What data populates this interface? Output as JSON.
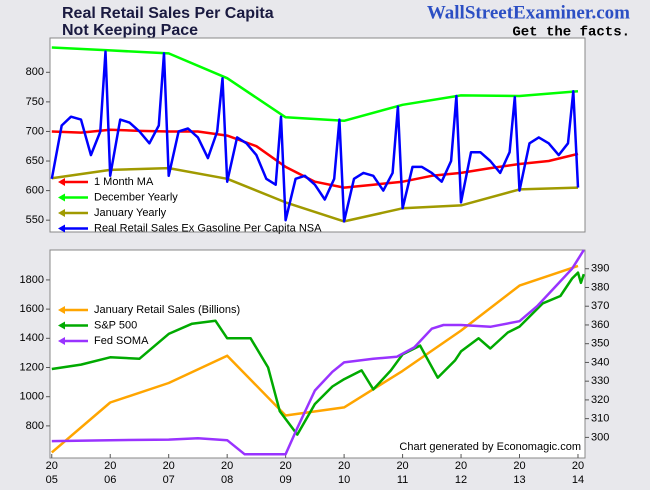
{
  "header": {
    "title": [
      "Real Retail Sales Per Capita",
      "Not Keeping Pace"
    ],
    "site": "WallStreetExaminer.com",
    "tagline": "Get the facts."
  },
  "chart_data": [
    {
      "type": "line",
      "xlim": [
        2004.97,
        2014.12
      ],
      "ylim": [
        530,
        858
      ],
      "yticks": [
        550,
        600,
        650,
        700,
        750,
        800
      ],
      "legend": "lower left",
      "series": [
        {
          "name": "1 Month MA",
          "color": "#ff0000",
          "x": [
            2005,
            2005.5,
            2006,
            2006.5,
            2007,
            2007.5,
            2008,
            2008.5,
            2009,
            2009.5,
            2010,
            2010.5,
            2011,
            2011.5,
            2012,
            2012.5,
            2013,
            2013.5,
            2014
          ],
          "values": [
            700,
            698,
            703,
            701,
            700,
            700,
            693,
            675,
            640,
            615,
            605,
            610,
            615,
            625,
            630,
            638,
            645,
            650,
            662
          ]
        },
        {
          "name": "December Yearly",
          "color": "#00ff00",
          "x": [
            2005,
            2006,
            2007,
            2008,
            2009,
            2010,
            2011,
            2012,
            2013,
            2014
          ],
          "values": [
            842,
            837,
            832,
            790,
            724,
            718,
            745,
            761,
            760,
            768
          ]
        },
        {
          "name": "January Yearly",
          "color": "#a09a00",
          "x": [
            2005,
            2006,
            2007,
            2008,
            2009,
            2010,
            2011,
            2012,
            2013,
            2014
          ],
          "values": [
            621,
            635,
            638,
            620,
            580,
            548,
            570,
            575,
            602,
            605
          ]
        },
        {
          "name": "Real Retail Sales Ex Gasoline Per Capita NSA",
          "color": "#0000ff",
          "x": [
            2005,
            2005.17,
            2005.33,
            2005.5,
            2005.67,
            2005.83,
            2005.92,
            2006,
            2006.17,
            2006.33,
            2006.5,
            2006.67,
            2006.83,
            2006.92,
            2007,
            2007.17,
            2007.33,
            2007.5,
            2007.67,
            2007.83,
            2007.92,
            2008,
            2008.17,
            2008.33,
            2008.5,
            2008.67,
            2008.83,
            2008.92,
            2009,
            2009.17,
            2009.33,
            2009.5,
            2009.67,
            2009.83,
            2009.92,
            2010,
            2010.17,
            2010.33,
            2010.5,
            2010.67,
            2010.83,
            2010.92,
            2011,
            2011.17,
            2011.33,
            2011.5,
            2011.67,
            2011.83,
            2011.92,
            2012,
            2012.17,
            2012.33,
            2012.5,
            2012.67,
            2012.83,
            2012.92,
            2013,
            2013.17,
            2013.33,
            2013.5,
            2013.67,
            2013.83,
            2013.92,
            2014
          ],
          "values": [
            620,
            710,
            725,
            720,
            660,
            700,
            835,
            625,
            720,
            715,
            700,
            680,
            710,
            832,
            625,
            700,
            705,
            690,
            655,
            700,
            790,
            615,
            690,
            680,
            660,
            620,
            610,
            725,
            550,
            620,
            625,
            610,
            585,
            620,
            720,
            548,
            620,
            630,
            625,
            600,
            630,
            742,
            570,
            640,
            640,
            630,
            615,
            650,
            760,
            580,
            665,
            665,
            650,
            630,
            665,
            758,
            600,
            680,
            690,
            680,
            660,
            680,
            768,
            605
          ]
        }
      ]
    },
    {
      "type": "line",
      "xlim": [
        2004.97,
        2014.12
      ],
      "ylim": [
        580,
        2005
      ],
      "yticks": [
        800,
        1000,
        1200,
        1400,
        1600,
        1800
      ],
      "y2lim": [
        289,
        400
      ],
      "y2ticks": [
        300,
        310,
        320,
        330,
        340,
        350,
        360,
        370,
        380,
        390
      ],
      "legend": "center left",
      "xticks": [
        {
          "value": 2005,
          "label": "20\n05"
        },
        {
          "value": 2006,
          "label": "20\n06"
        },
        {
          "value": 2007,
          "label": "20\n07"
        },
        {
          "value": 2008,
          "label": "20\n08"
        },
        {
          "value": 2009,
          "label": "20\n09"
        },
        {
          "value": 2010,
          "label": "20\n10"
        },
        {
          "value": 2011,
          "label": "20\n11"
        },
        {
          "value": 2012,
          "label": "20\n12"
        },
        {
          "value": 2013,
          "label": "20\n13"
        },
        {
          "value": 2014,
          "label": "20\n14"
        }
      ],
      "credit": "Chart generated by Economagic.com",
      "series": [
        {
          "name": "January Retail Sales (Billions)",
          "color": "#ffa500",
          "axis": "y2",
          "x": [
            2005,
            2006,
            2007,
            2008,
            2009,
            2010,
            2011,
            2012,
            2013,
            2014
          ],
          "values": [
            292,
            318.6,
            329,
            343.6,
            311.7,
            316,
            335.5,
            357,
            381,
            391.5
          ]
        },
        {
          "name": "S&P 500",
          "color": "#00aa00",
          "x": [
            2005,
            2005.5,
            2006,
            2006.5,
            2007,
            2007.4,
            2007.8,
            2008,
            2008.4,
            2008.7,
            2008.9,
            2009.2,
            2009.5,
            2009.8,
            2010,
            2010.3,
            2010.5,
            2010.8,
            2011,
            2011.3,
            2011.6,
            2011.9,
            2012,
            2012.3,
            2012.5,
            2012.8,
            2013,
            2013.4,
            2013.7,
            2013.9,
            2014,
            2014.05,
            2014.1
          ],
          "values": [
            1190,
            1220,
            1270,
            1260,
            1430,
            1500,
            1520,
            1400,
            1400,
            1200,
            900,
            740,
            950,
            1070,
            1120,
            1180,
            1050,
            1180,
            1290,
            1350,
            1130,
            1250,
            1310,
            1400,
            1330,
            1440,
            1480,
            1640,
            1690,
            1810,
            1850,
            1780,
            1840
          ]
        },
        {
          "name": "Fed SOMA",
          "color": "#9933ff",
          "axis": "y2",
          "x": [
            2005,
            2006,
            2007,
            2007.5,
            2008,
            2008.3,
            2009,
            2009.2,
            2009.5,
            2009.8,
            2010,
            2010.5,
            2010.9,
            2011.2,
            2011.5,
            2011.7,
            2012,
            2012.5,
            2013,
            2013.3,
            2013.6,
            2013.9,
            2014.1
          ],
          "values": [
            298,
            298.5,
            298.8,
            299.5,
            298.5,
            291,
            291,
            305,
            325,
            335,
            340,
            342,
            343,
            348,
            358,
            360,
            360,
            359,
            362,
            370,
            380,
            390,
            400
          ]
        }
      ]
    }
  ]
}
